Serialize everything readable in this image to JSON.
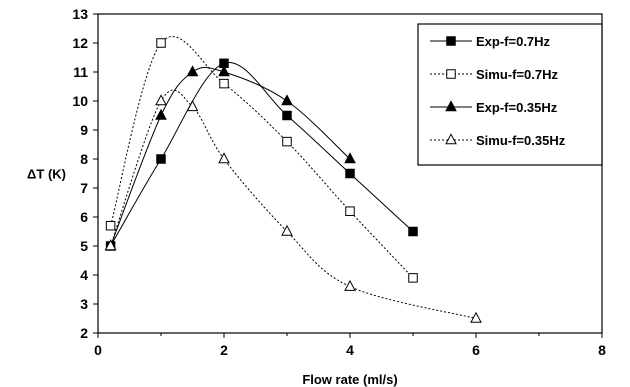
{
  "chart_data": {
    "type": "scatter",
    "title": "",
    "xlabel": "Flow rate (ml/s)",
    "ylabel": "ΔT (K)",
    "xlim": [
      0,
      8
    ],
    "ylim": [
      2,
      13
    ],
    "x_ticks": [
      "0",
      "2",
      "4",
      "6",
      "8"
    ],
    "y_ticks": [
      "2",
      "3",
      "4",
      "5",
      "6",
      "7",
      "8",
      "9",
      "10",
      "11",
      "12",
      "13"
    ],
    "grid": false,
    "legend_position": "top-right",
    "series": [
      {
        "name": "Exp-f=0.7Hz",
        "marker": "square-filled",
        "line": "solid",
        "x": [
          0.2,
          1,
          2,
          3,
          4,
          5
        ],
        "y": [
          5.0,
          8.0,
          11.3,
          9.5,
          7.5,
          5.5
        ]
      },
      {
        "name": "Simu-f=0.7Hz",
        "marker": "square-open",
        "line": "dotted",
        "x": [
          0.2,
          1,
          2,
          3,
          4,
          5
        ],
        "y": [
          5.7,
          12.0,
          10.6,
          8.6,
          6.2,
          3.9
        ]
      },
      {
        "name": "Exp-f=0.35Hz",
        "marker": "triangle-filled",
        "line": "solid",
        "x": [
          0.2,
          1,
          1.5,
          2,
          3,
          4
        ],
        "y": [
          5.0,
          9.5,
          11.0,
          11.0,
          10.0,
          8.0
        ]
      },
      {
        "name": "Simu-f=0.35Hz",
        "marker": "triangle-open",
        "line": "dotted",
        "x": [
          0.2,
          1,
          1.5,
          2,
          3,
          4,
          6
        ],
        "y": [
          5.0,
          10.0,
          9.8,
          8.0,
          5.5,
          3.6,
          2.5
        ]
      }
    ]
  }
}
